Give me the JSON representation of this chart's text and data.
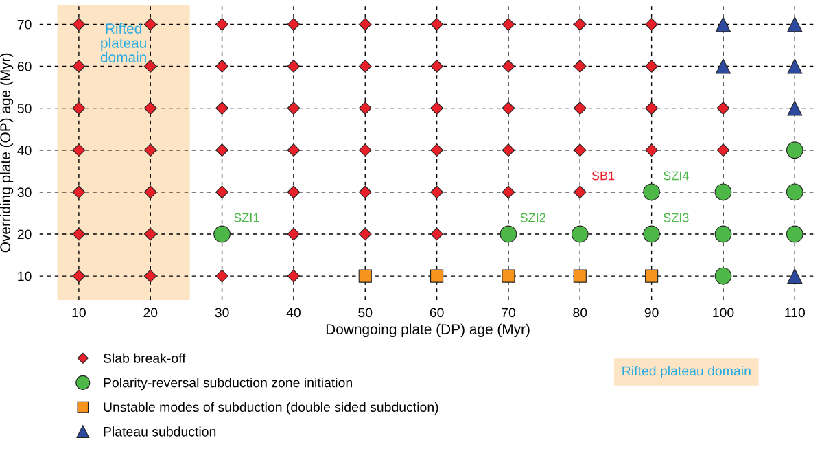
{
  "chart_data": {
    "type": "scatter",
    "xlabel": "Downgoing plate (DP) age (Myr)",
    "ylabel": "Overriding plate (OP) age (Myr)",
    "xlim": [
      4.5,
      113
    ],
    "ylim": [
      4.3,
      74.5
    ],
    "xticks": [
      10,
      20,
      30,
      40,
      50,
      60,
      70,
      80,
      90,
      100,
      110
    ],
    "yticks": [
      10,
      20,
      30,
      40,
      50,
      60,
      70
    ],
    "grid": true,
    "legend": "bottom left",
    "series": [
      {
        "name": "Slab break-off",
        "color": "#e8202a",
        "marker": "diamond",
        "x": [
          10,
          10,
          10,
          10,
          10,
          10,
          10,
          20,
          20,
          20,
          20,
          20,
          20,
          20,
          30,
          30,
          30,
          30,
          30,
          30,
          40,
          40,
          40,
          40,
          40,
          40,
          40,
          50,
          50,
          50,
          50,
          50,
          50,
          60,
          60,
          60,
          60,
          60,
          60,
          70,
          70,
          70,
          70,
          70,
          80,
          80,
          80,
          80,
          80,
          90,
          90,
          90,
          90,
          100,
          100
        ],
        "values": [
          10,
          20,
          30,
          40,
          50,
          60,
          70,
          10,
          20,
          30,
          40,
          50,
          60,
          70,
          10,
          30,
          40,
          50,
          60,
          70,
          10,
          20,
          30,
          40,
          50,
          60,
          70,
          20,
          30,
          40,
          50,
          60,
          70,
          20,
          30,
          40,
          50,
          60,
          70,
          30,
          40,
          50,
          60,
          70,
          30,
          40,
          50,
          60,
          70,
          40,
          50,
          60,
          70,
          40,
          50
        ]
      },
      {
        "name": "Polarity-reversal subduction zone initiation",
        "color": "#4db848",
        "marker": "circle",
        "x": [
          30,
          70,
          80,
          90,
          100,
          110,
          90,
          100,
          110,
          110,
          100
        ],
        "values": [
          20,
          20,
          20,
          20,
          20,
          20,
          30,
          30,
          30,
          40,
          10
        ]
      },
      {
        "name": "Unstable modes of subduction (double sided subduction)",
        "color": "#f7941d",
        "marker": "square",
        "x": [
          50,
          60,
          70,
          80,
          90
        ],
        "values": [
          10,
          10,
          10,
          10,
          10
        ]
      },
      {
        "name": "Plateau subduction",
        "color": "#2e4a9e",
        "marker": "triangle",
        "x": [
          100,
          110,
          100,
          110,
          110,
          110
        ],
        "values": [
          70,
          70,
          60,
          60,
          50,
          10
        ]
      }
    ],
    "bands": [
      {
        "axis": "x",
        "from": 7,
        "to": 25.5,
        "label": "Rifted plateau domain",
        "color": "#fce4c4"
      }
    ],
    "annotations": [
      "Rifted plateau domain",
      {
        "text": "SZI1",
        "x": 30,
        "y": 20
      },
      {
        "text": "SZI2",
        "x": 70,
        "y": 20
      },
      {
        "text": "SB1",
        "x": 80,
        "y": 30
      },
      {
        "text": "SZI4",
        "x": 90,
        "y": 30
      },
      {
        "text": "SZI3",
        "x": 90,
        "y": 20
      }
    ]
  }
}
